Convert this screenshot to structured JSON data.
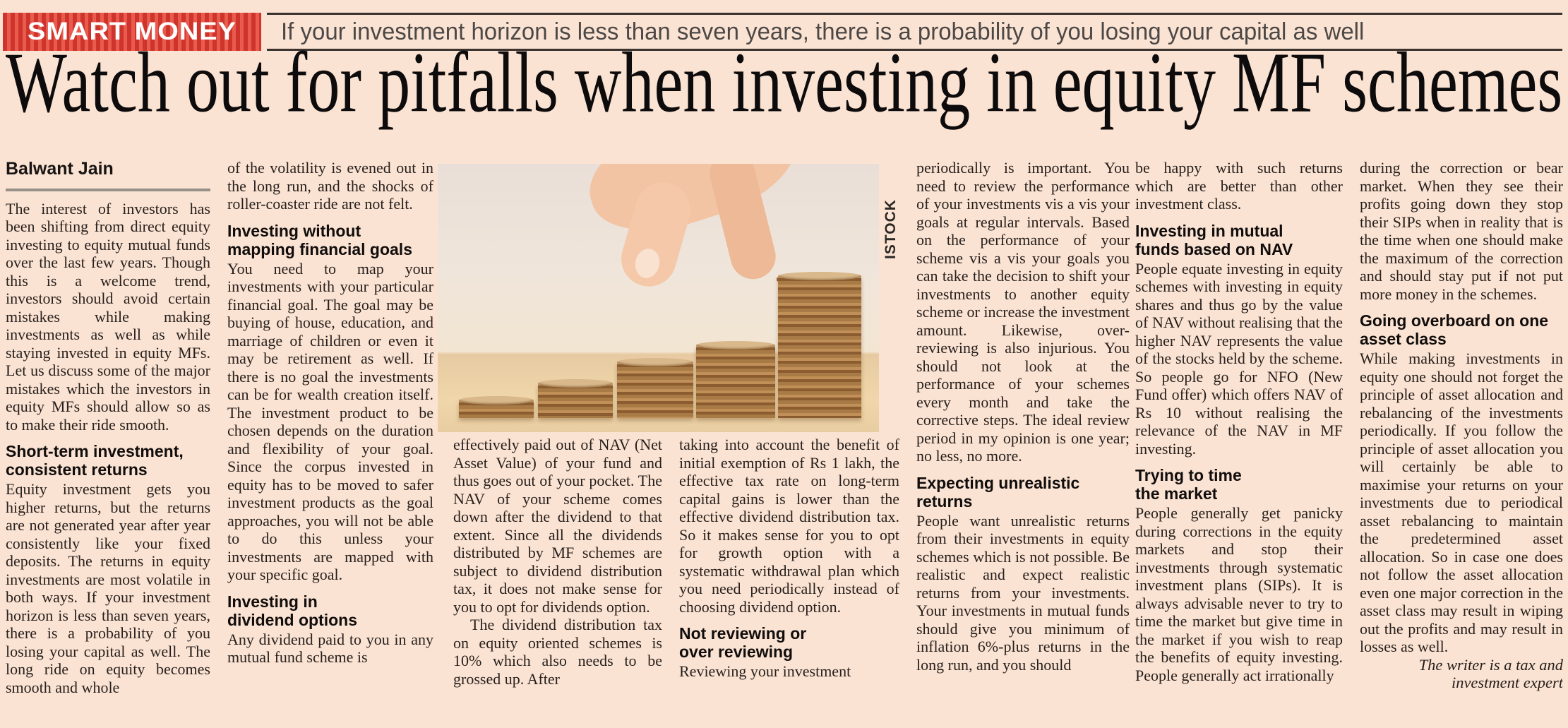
{
  "banner": {
    "label": "SMART MONEY",
    "subtitle": "If your investment horizon is less than seven years, there is a probability of you losing your capital as well"
  },
  "headline": "Watch out for pitfalls when investing in equity MF schemes",
  "photo_credit": "ISTOCK",
  "colors": {
    "page_bg": "#fbe3d3",
    "banner_red_dark": "#cf342c",
    "banner_red_light": "#e95b4d",
    "headline_text": "#0d0b0c",
    "body_text": "#261f1c",
    "subtitle_text": "#4c4846",
    "byline_rule": "#979089"
  },
  "columns": [
    {
      "blocks": [
        {
          "type": "byline",
          "text": "Balwant Jain"
        },
        {
          "type": "para",
          "text": "The interest of investors has been shifting from direct equity investing to equity mutual funds over the last few years. Though this is a welcome trend, investors should avoid certain mistakes while making investments as well as while staying invested in equity MFs. Let us discuss some of the major mistakes which the investors in equity MFs should allow so as to make their ride smooth."
        },
        {
          "type": "heading",
          "text": "Short-term investment,\nconsistent returns"
        },
        {
          "type": "para",
          "text": "Equity investment gets you higher returns, but the returns are not generated year after year consistently like your fixed deposits. The returns in equity investments are most volatile in both ways. If your investment horizon is less than seven years, there is a probability of you losing your capital as well. The long ride on equity becomes smooth and whole"
        }
      ]
    },
    {
      "blocks": [
        {
          "type": "para",
          "text": "of the volatility is evened out in the long run, and the shocks of roller-coaster ride are not felt."
        },
        {
          "type": "heading",
          "text": "Investing without\nmapping financial goals"
        },
        {
          "type": "para",
          "text": "You need to map your investments with your particular financial goal. The goal may be buying of house, education, and marriage of children or even it may be retirement as well. If there is no goal the investments can be for wealth creation itself. The investment product to be chosen depends on the duration and flexibility of your goal. Since the corpus invested in equity has to be moved to safer investment products as the goal approaches, you will not be able to do this unless your investments are mapped with your specific goal."
        },
        {
          "type": "heading",
          "text": "Investing in\ndividend options"
        },
        {
          "type": "para",
          "text": "Any dividend paid to you in any mutual fund scheme is"
        }
      ]
    },
    {
      "blocks": [
        {
          "type": "para",
          "text": "effectively paid out of NAV (Net Asset Value) of your fund and thus goes out of your pocket. The NAV of your scheme comes down after the dividend to that extent. Since all the dividends distributed by MF schemes are subject to dividend distribution tax, it does not make sense for you to opt for dividends option."
        },
        {
          "type": "para",
          "indent": true,
          "text": "The dividend distribution tax on equity oriented schemes is 10% which also needs to be grossed up. After"
        }
      ]
    },
    {
      "blocks": [
        {
          "type": "para",
          "text": "taking into account the benefit of initial exemption of Rs 1 lakh, the effective tax rate on long-term capital gains is lower than the effective dividend distribution tax. So it makes sense for you to opt for growth option with a systematic withdrawal plan which you need periodically instead of choosing dividend option."
        },
        {
          "type": "heading",
          "text": "Not reviewing or\nover reviewing"
        },
        {
          "type": "para",
          "text": "Reviewing your investment"
        }
      ]
    },
    {
      "blocks": [
        {
          "type": "para",
          "text": "periodically is important. You need to review the performance of your investments vis a vis your goals at regular intervals. Based on the performance of your scheme vis a vis your goals you can take the decision to shift your investments to another equity scheme or increase the investment amount. Likewise, over-reviewing is also injurious. You should not look at the performance of your schemes every month and take the corrective steps. The ideal review period in my opinion is one year; no less, no more."
        },
        {
          "type": "heading",
          "text": "Expecting unrealistic\nreturns"
        },
        {
          "type": "para",
          "text": "People want unrealistic returns from their investments in equity schemes which is not possible. Be realistic and expect realistic returns from your investments. Your investments in mutual funds should give you minimum of inflation 6%-plus returns in the long run, and you should"
        }
      ]
    },
    {
      "blocks": [
        {
          "type": "para",
          "text": "be happy with such returns which are better than other investment class."
        },
        {
          "type": "heading",
          "text": "Investing in mutual\nfunds based on NAV"
        },
        {
          "type": "para",
          "text": "People equate investing in equity schemes with investing in equity shares and thus go by the value of NAV without realising that the higher NAV represents the value of the stocks held by the scheme. So people go for NFO (New Fund offer) which offers NAV of Rs 10 without realising the relevance of the NAV in MF investing."
        },
        {
          "type": "heading",
          "text": "Trying to time\nthe market"
        },
        {
          "type": "para",
          "text": "People generally get panicky during corrections in the equity markets and stop their investments through systematic investment plans (SIPs). It is always advisable never to try to time the market but give time in the market if you wish to reap the benefits of equity investing. People generally act irrationally"
        }
      ]
    },
    {
      "blocks": [
        {
          "type": "para",
          "text": "during the correction or bear market. When they see their profits going down they stop their SIPs when in reality that is the time when one should make the maximum of the correction and should stay put if not put more money in the schemes."
        },
        {
          "type": "heading",
          "text": "Going overboard on one\nasset class"
        },
        {
          "type": "para",
          "text": "While making investments in equity one should not forget the principle of asset allocation and rebalancing of the investments periodically. If you follow the principle of asset allocation you will certainly be able to maximise your returns on your investments due to periodical asset rebalancing to maintain the predetermined asset allocation. So in case one does not follow the asset allocation even one major correction in the asset class may result in wiping out the profits and may result in losses as well."
        },
        {
          "type": "signoff",
          "text": "The writer is a tax and\ninvestment expert"
        }
      ]
    }
  ]
}
